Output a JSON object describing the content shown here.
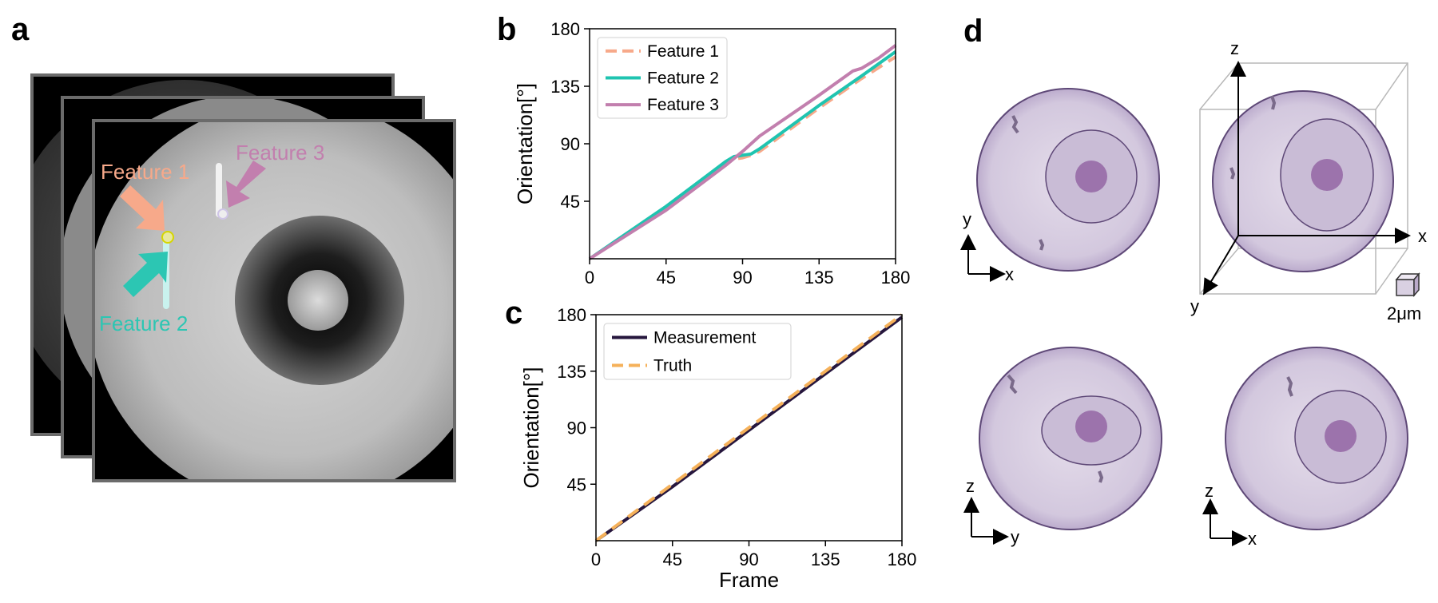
{
  "panel_labels": {
    "a": "a",
    "b": "b",
    "c": "c",
    "d": "d"
  },
  "panel_a": {
    "annotations": [
      {
        "key": "f1",
        "text": "Feature 1",
        "color": "#f7a98a"
      },
      {
        "key": "f2",
        "text": "Feature 2",
        "color": "#2cc6b3"
      },
      {
        "key": "f3",
        "text": "Feature 3",
        "color": "#c27fae"
      }
    ]
  },
  "panel_d": {
    "views": [
      {
        "key": "xy",
        "axes": [
          "x",
          "y"
        ]
      },
      {
        "key": "3d",
        "axes": [
          "x",
          "y",
          "z"
        ]
      },
      {
        "key": "yz",
        "axes": [
          "y",
          "z"
        ]
      },
      {
        "key": "xz",
        "axes": [
          "x",
          "z"
        ]
      }
    ],
    "scale_label": "2μm",
    "sphere_color": "#d9d0e2",
    "nucleus_color": "#9c73ac"
  },
  "chart_data": [
    {
      "id": "b",
      "type": "line",
      "xlim": [
        0,
        180
      ],
      "ylim": [
        0,
        180
      ],
      "xticks": [
        0,
        45,
        90,
        135,
        180
      ],
      "yticks": [
        45,
        90,
        135,
        180
      ],
      "xlabel": "",
      "ylabel": "Orientation[°]",
      "legend": "top-left",
      "series": [
        {
          "name": "Feature 1",
          "color": "#f7a98a",
          "dash": true,
          "x": [
            0,
            45,
            80,
            85,
            90,
            95,
            100,
            135,
            160,
            180
          ],
          "y": [
            0,
            40,
            74,
            78,
            79,
            81,
            84,
            118,
            141,
            158
          ]
        },
        {
          "name": "Feature 2",
          "color": "#1fc4b0",
          "dash": false,
          "x": [
            0,
            45,
            80,
            85,
            90,
            95,
            100,
            135,
            160,
            180
          ],
          "y": [
            0,
            41,
            76,
            80,
            81,
            82,
            86,
            120,
            143,
            162
          ]
        },
        {
          "name": "Feature 3",
          "color": "#c27fae",
          "dash": false,
          "x": [
            0,
            45,
            80,
            90,
            100,
            135,
            155,
            160,
            170,
            180
          ],
          "y": [
            0,
            38,
            73,
            84,
            96,
            128,
            147,
            149,
            157,
            167
          ]
        }
      ]
    },
    {
      "id": "c",
      "type": "line",
      "xlim": [
        0,
        180
      ],
      "ylim": [
        0,
        180
      ],
      "xticks": [
        0,
        45,
        90,
        135,
        180
      ],
      "yticks": [
        45,
        90,
        135,
        180
      ],
      "xlabel": "Frame",
      "ylabel": "Orientation[°]",
      "legend": "top-left",
      "series": [
        {
          "name": "Measurement",
          "color": "#26163d",
          "dash": false,
          "x": [
            0,
            45,
            90,
            135,
            180
          ],
          "y": [
            0,
            43,
            88,
            133,
            178
          ]
        },
        {
          "name": "Truth",
          "color": "#f5b15a",
          "dash": true,
          "x": [
            0,
            180
          ],
          "y": [
            0,
            180
          ]
        }
      ]
    }
  ]
}
